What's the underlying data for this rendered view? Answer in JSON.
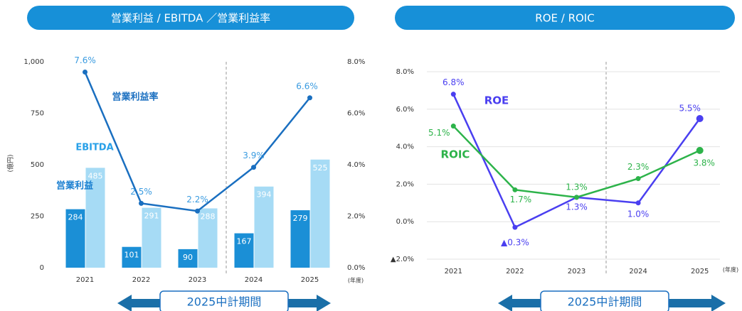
{
  "chart_data": [
    {
      "type": "bar_line",
      "title": "営業利益 / EBITDA ／営業利益率",
      "y_label": "(億円)",
      "x_label": "(年度)",
      "period_label": "2025中計期間",
      "grid": false,
      "categories": [
        "2021",
        "2022",
        "2023",
        "2024",
        "2025"
      ],
      "ylim": [
        0,
        1000
      ],
      "yticks": [
        0,
        250,
        500,
        750,
        {
          "value": 1000,
          "label": "1,000"
        }
      ],
      "y2lim": [
        0,
        8
      ],
      "y2ticks": [
        {
          "value": 0,
          "label": "0.0%"
        },
        {
          "value": 2,
          "label": "2.0%"
        },
        {
          "value": 4,
          "label": "4.0%"
        },
        {
          "value": 6,
          "label": "6.0%"
        },
        {
          "value": 8,
          "label": "8.0%"
        }
      ],
      "series": [
        {
          "name": "営業利益",
          "kind": "bar",
          "color": "#1b8fd6",
          "values": [
            284,
            101,
            90,
            167,
            279
          ]
        },
        {
          "name": "EBITDA",
          "kind": "bar",
          "color": "#a6dbf5",
          "values": [
            485,
            291,
            288,
            394,
            525
          ]
        },
        {
          "name": "営業利益率",
          "kind": "line",
          "axis": "y2",
          "color": "#1a6fc0",
          "values": [
            7.6,
            2.5,
            2.2,
            3.9,
            6.6
          ],
          "value_labels": [
            "7.6%",
            "2.5%",
            "2.2%",
            "3.9%",
            "6.6%"
          ]
        }
      ]
    },
    {
      "type": "line",
      "title": "ROE / ROIC",
      "x_label": "(年度)",
      "period_label": "2025中計期間",
      "grid": true,
      "categories": [
        "2021",
        "2022",
        "2023",
        "2024",
        "2025"
      ],
      "ylim": [
        -2,
        8
      ],
      "yticks": [
        {
          "value": -2,
          "label": "▲2.0%"
        },
        {
          "value": 0,
          "label": "0.0%"
        },
        {
          "value": 2,
          "label": "2.0%"
        },
        {
          "value": 4,
          "label": "4.0%"
        },
        {
          "value": 6,
          "label": "6.0%"
        },
        {
          "value": 8,
          "label": "8.0%"
        }
      ],
      "series": [
        {
          "name": "ROE",
          "color": "#4a3ff0",
          "values": [
            6.8,
            -0.3,
            1.3,
            1.0,
            5.5
          ],
          "value_labels": [
            "6.8%",
            "▲0.3%",
            "1.3%",
            "1.0%",
            "5.5%"
          ]
        },
        {
          "name": "ROIC",
          "color": "#2db34a",
          "values": [
            5.1,
            1.7,
            1.3,
            2.3,
            3.8
          ],
          "value_labels": [
            "5.1%",
            "1.7%",
            "1.3%",
            "2.3%",
            "3.8%"
          ]
        }
      ]
    }
  ]
}
